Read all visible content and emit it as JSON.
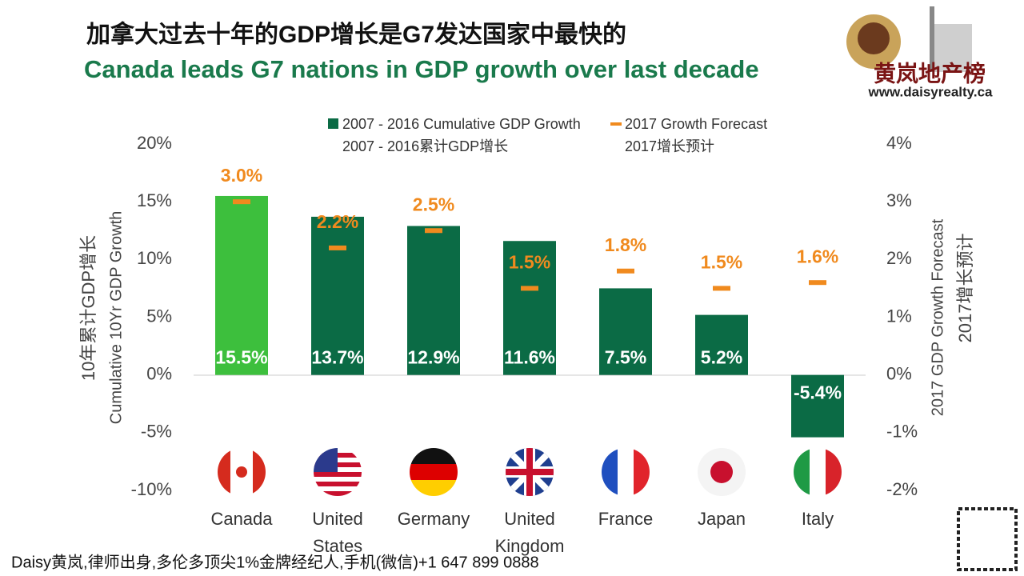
{
  "chart_data": {
    "type": "bar",
    "title": "加拿大过去十年的GDP增长是G7发达国家中最快的",
    "subtitle": "Canada leads G7 nations in GDP growth over last decade",
    "categories": [
      "Canada",
      "United States",
      "Germany",
      "United Kingdom",
      "France",
      "Japan",
      "Italy"
    ],
    "series": [
      {
        "name": "2007 - 2016 Cumulative GDP Growth",
        "name_zh": "2007 - 2016累计GDP增长",
        "color": "#0b6b45",
        "colors": [
          "#3dbf3d",
          "#0b6b45",
          "#0b6b45",
          "#0b6b45",
          "#0b6b45",
          "#0b6b45",
          "#0b6b45"
        ],
        "values": [
          15.5,
          13.7,
          12.9,
          11.6,
          7.5,
          5.2,
          -5.4
        ],
        "value_labels": [
          "15.5%",
          "13.7%",
          "12.9%",
          "11.6%",
          "7.5%",
          "5.2%",
          "-5.4%"
        ]
      },
      {
        "name": "2017 Growth Forecast",
        "name_zh": "2017增长预计",
        "axis": "y2",
        "color": "#f08a1e",
        "values": [
          3.0,
          2.2,
          2.5,
          1.5,
          1.8,
          1.5,
          1.6
        ],
        "value_labels": [
          "3.0%",
          "2.2%",
          "2.5%",
          "1.5%",
          "1.8%",
          "1.5%",
          "1.6%"
        ]
      }
    ],
    "ylim": [
      -10,
      20
    ],
    "yticks": [
      {
        "value": -10,
        "label": "-10%"
      },
      {
        "value": -5,
        "label": "-5%"
      },
      {
        "value": 0,
        "label": "0%"
      },
      {
        "value": 5,
        "label": "5%"
      },
      {
        "value": 10,
        "label": "10%"
      },
      {
        "value": 15,
        "label": "15%"
      },
      {
        "value": 20,
        "label": "20%"
      }
    ],
    "y2lim": [
      -2,
      4
    ],
    "y2ticks": [
      {
        "value": -2,
        "label": "-2%"
      },
      {
        "value": -1,
        "label": "-1%"
      },
      {
        "value": 0,
        "label": "0%"
      },
      {
        "value": 1,
        "label": "1%"
      },
      {
        "value": 2,
        "label": "2%"
      },
      {
        "value": 3,
        "label": "3%"
      },
      {
        "value": 4,
        "label": "4%"
      }
    ],
    "ylabel": "Cumulative 10Yr GDP Growth",
    "ylabel_zh": "10年累计GDP增长",
    "y2label": "2017 GDP Growth Forecast",
    "y2label_zh": "2017增长预计",
    "grid": false
  },
  "logo": {
    "name": "黄岚地产榜",
    "url": "www.daisyrealty.ca"
  },
  "footer": "Daisy黄岚,律师出身,多伦多顶尖1%金牌经纪人,手机(微信)+1 647 899 0888"
}
